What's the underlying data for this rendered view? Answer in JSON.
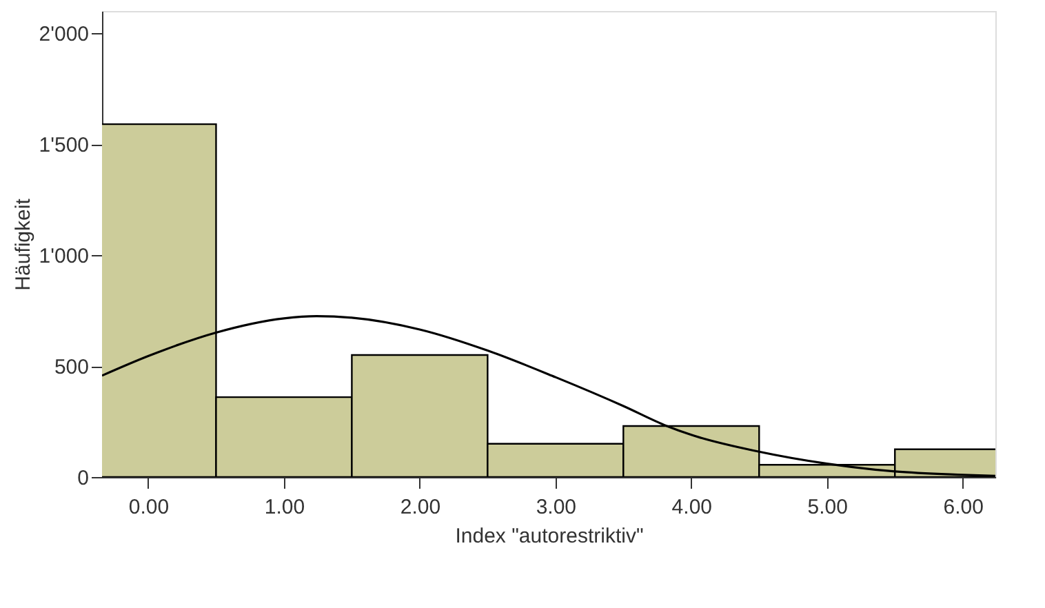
{
  "chart_data": {
    "type": "histogram",
    "xlabel": "Index \"autorestriktiv\"",
    "ylabel": "Häufigkeit",
    "bins": [
      -0.5,
      0.5,
      1.5,
      2.5,
      3.5,
      4.5,
      5.5,
      6.5
    ],
    "values": [
      1590,
      360,
      550,
      150,
      230,
      55,
      125
    ],
    "color": "#cccc9a",
    "series": [
      {
        "type": "line",
        "color": "#000000",
        "x": [
          -0.34,
          0,
          0.5,
          1.0,
          1.24,
          1.5,
          2.0,
          2.5,
          3.0,
          3.5,
          3.82,
          4.0,
          4.5,
          5.0,
          5.5,
          6.0,
          6.24
        ],
        "values": [
          457,
          545,
          651,
          715,
          725,
          718,
          665,
          570,
          450,
          320,
          230,
          190,
          114,
          60,
          25,
          10,
          5
        ]
      }
    ],
    "xlim": [
      -0.34,
      6.24
    ],
    "xticks": [
      {
        "value": 0,
        "label": "0.00"
      },
      {
        "value": 1,
        "label": "1.00"
      },
      {
        "value": 2,
        "label": "2.00"
      },
      {
        "value": 3,
        "label": "3.00"
      },
      {
        "value": 4,
        "label": "4.00"
      },
      {
        "value": 5,
        "label": "5.00"
      },
      {
        "value": 6,
        "label": "6.00"
      }
    ],
    "ylim": [
      0,
      2100
    ],
    "yticks": [
      0,
      500,
      {
        "value": 1000,
        "label": "1'000"
      },
      {
        "value": 1500,
        "label": "1'500"
      },
      {
        "value": 2000,
        "label": "2'000"
      }
    ],
    "grid": false
  }
}
